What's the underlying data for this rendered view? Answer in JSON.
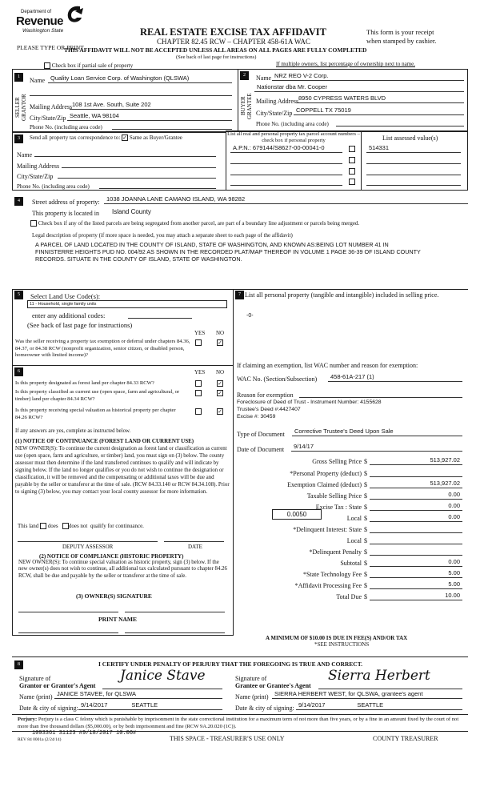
{
  "header": {
    "logo_line1": "Department of",
    "logo_line2": "Revenue",
    "logo_line3": "Washington State",
    "logo_icon": "dor-swirl-logo",
    "title": "REAL ESTATE EXCISE TAX AFFIDAVIT",
    "chapter": "CHAPTER 82.45 RCW – CHAPTER 458-61A WAC",
    "receipt1": "This form is your receipt",
    "receipt2": "when stamped by cashier.",
    "type_print": "PLEASE TYPE OR PRINT",
    "warning": "THIS AFFIDAVIT WILL NOT BE ACCEPTED UNLESS ALL AREAS ON ALL PAGES ARE FULLY COMPLETED",
    "see_back": "(See back of last page for instructions)",
    "partial_sale": "Check box if partial sale of property",
    "partial_sale_checked": false,
    "multiple_owners": "If multiple owners, list percentage of ownership next to name."
  },
  "seller": {
    "num": "1",
    "side_label": "SELLER GRANTOR",
    "name_label": "Name",
    "name": "Quality Loan Service Corp. of Washington  (QLSWA)",
    "name2": "",
    "address_label": "Mailing Address",
    "address": "108 1st Ave. South, Suite 202",
    "city_label": "City/State/Zip",
    "city": "Seattle, WA 98104",
    "phone_label": "Phone No. (including area code)",
    "phone": ""
  },
  "buyer": {
    "num": "2",
    "side_label": "BUYER GRANTEE",
    "name_label": "Name",
    "name": "NRZ REO V-2 Corp.",
    "name2": "Nationstar dba Mr. Cooper",
    "address_label": "Mailing Address",
    "address": "8950 CYPRESS WATERS BLVD",
    "city_label": "City/State/Zip",
    "city": "COPPELL TX 75019",
    "phone_label": "Phone No. (including area code)",
    "phone": ""
  },
  "correspondence": {
    "num": "3",
    "label": "Send all property tax correspondence to:",
    "same_label": "Same as Buyer/Grantee",
    "same_checked": true,
    "name_label": "Name",
    "address_label": "Mailing Address",
    "city_label": "City/State/Zip",
    "phone_label": "Phone No. (including area code)"
  },
  "parcels": {
    "header": "List all real and personal property tax parcel account numbers – check box if personal property",
    "value_header": "List assessed value(s)",
    "rows": [
      {
        "parcel": "A.P.N.:  679144/S8627-00-00041-0",
        "personal": false,
        "value": "514331"
      },
      {
        "parcel": "",
        "personal": false,
        "value": ""
      },
      {
        "parcel": "",
        "personal": false,
        "value": ""
      },
      {
        "parcel": "",
        "personal": false,
        "value": ""
      }
    ]
  },
  "property": {
    "num": "4",
    "street_label": "Street address of property:",
    "street": "1038 JOANNA LANE CAMANO ISLAND, WA 98282",
    "located_label": "This property is located in",
    "county": "Island County",
    "segregated_label": "Check box if any of the listed parcels are being segregated from another parcel, are part of a boundary line adjustment or parcels being merged.",
    "segregated_checked": false,
    "legal_label": "Legal description of property (if more space is needed, you may attach a separate sheet to each page of the affidavit)",
    "legal": "A PARCEL OF LAND LOCATED IN THE COUNTY OF ISLAND, STATE OF WASHINGTON, AND KNOWN AS:BEING LOT NUMBER 41 IN FINNISTERRE HEIGHTS PUD NO. 004/92 AS SHOWN IN THE RECORDED PLAT/MAP THEREOF IN VOLUME 1 PAGE 36-39 OF ISLAND COUNTY RECORDS. SITUATE IN THE COUNTY OF ISLAND, STATE OF WASHINGTON."
  },
  "land_use": {
    "num": "5",
    "label": "Select Land Use Code(s):",
    "code": "11 - Household, single family units",
    "additional_label": "enter any additional codes:",
    "see_back": "(See back of last page for instructions)",
    "yes": "YES",
    "no": "NO",
    "exemption_q": "Was the seller receiving a property tax exemption or deferral under chapters 84.36, 84.37, or 84.38 RCW (nonprofit organization, senior citizen, or disabled person, homeowner with limited income)?",
    "exemption_yes": false,
    "exemption_no": true
  },
  "section6": {
    "num": "6",
    "yes": "YES",
    "no": "NO",
    "questions": [
      {
        "q": "Is this property designated as forest land per chapter 84.33 RCW?",
        "yes": false,
        "no": true
      },
      {
        "q": "Is this property classified as current use (open space, farm and agricultural, or timber) land per chapter 84.34 RCW?",
        "yes": false,
        "no": true
      },
      {
        "q": "Is this property receiving special valuation as historical property per chapter 84.26 RCW?",
        "yes": false,
        "no": true
      }
    ],
    "if_yes": "If any answers are yes, complete as instructed below.",
    "notice1_title": "(1) NOTICE OF CONTINUANCE  (FOREST LAND OR CURRENT USE)",
    "notice1_text": "NEW OWNER(S): To continue the current designation as forest land or classification as current use (open space, farm and agriculture, or timber) land, you must sign on (3) below. The county assessor must then determine if the land transferred continues to qualify and will indicate by signing below. If the land no longer qualifies or you do not wish to continue the designation or classification, it will be removed and the compensating or additional taxes will be due and payable by the seller or transferor at the time of sale. (RCW 84.33.140 or RCW 84.34.108). Prior to signing (3) below, you may contact your local county assessor for more information.",
    "this_land": "This land",
    "does": "does",
    "does_not": "does not",
    "qualify": "qualify for continuance.",
    "deputy": "DEPUTY ASSESSOR",
    "date": "DATE",
    "notice2_title": "(2) NOTICE OF COMPLIANCE (HISTORIC PROPERTY)",
    "notice2_text": "NEW OWNER(S): To continue special valuation as historic property, sign (3) below. If the new owner(s) does not wish to continue, all additional tax calculated pursuant to chapter 84.26 RCW, shall be due and payable by the seller or transferor at the time of sale.",
    "owner_sig": "(3)  OWNER(S) SIGNATURE",
    "print_name": "PRINT NAME"
  },
  "section7": {
    "num": "7",
    "label": "List all  personal property (tangible and intangible) included in selling price.",
    "value": "-0-",
    "exemption_label": "If claiming an exemption, list WAC number and reason for exemption:",
    "wac_label": "WAC No. (Section/Subsection)",
    "wac": "458-61A-217 (1)",
    "reason_label": "Reason for exemption",
    "reason_lines": [
      "Foreclosure of Deed of Trust - Instrument Number: 4155628",
      "Trustee's Deed #:4427407",
      "Excise #: 30459"
    ],
    "doc_type_label": "Type of Document",
    "doc_type": "Corrective Trustee's Deed Upon Sale",
    "doc_date_label": "Date of Document",
    "doc_date": "9/14/17"
  },
  "amounts": {
    "local_rate": "0.0050",
    "rows": [
      {
        "label": "Gross Selling Price",
        "value": "513,927.02"
      },
      {
        "label": "*Personal Property (deduct)",
        "value": ""
      },
      {
        "label": "Exemption Claimed (deduct)",
        "value": "513,927.02"
      },
      {
        "label": "Taxable Selling Price",
        "value": "0.00"
      },
      {
        "label": "Excise Tax : State",
        "value": "0.00"
      },
      {
        "label": "Local",
        "value": "0.00"
      },
      {
        "label": "*Delinquent Interest: State",
        "value": ""
      },
      {
        "label": "Local",
        "value": ""
      },
      {
        "label": "*Delinquent Penalty",
        "value": ""
      },
      {
        "label": "Subtotal",
        "value": "0.00"
      },
      {
        "label": "*State Technology Fee",
        "value": "5.00"
      },
      {
        "label": "*Affidavit Processing Fee",
        "value": "5.00"
      },
      {
        "label": "Total Due",
        "value": "10.00"
      }
    ],
    "currency": "$",
    "minimum": "A MINIMUM OF $10.00 IS DUE IN FEE(S) AND/OR TAX",
    "see_instr": "*SEE INSTRUCTIONS"
  },
  "certify": {
    "num": "8",
    "text": "I CERTIFY UNDER PENALTY OF PERJURY THAT THE FOREGOING IS TRUE AND CORRECT.",
    "grantor_sig_label1": "Signature of",
    "grantor_sig_label2": "Grantor or Grantor's Agent",
    "grantor_signature": "Janice Stave",
    "grantor_name_label": "Name (print)",
    "grantor_name": "JANICE STAVEE, for QLSWA",
    "grantor_date_label": "Date & city of signing:",
    "grantor_date": "9/14/2017",
    "grantor_city": "SEATTLE",
    "grantee_sig_label1": "Signature of",
    "grantee_sig_label2": "Grantee or Grantee's Agent",
    "grantee_signature": "Sierra Herbert",
    "grantee_name_label": "Name (print)",
    "grantee_name": "SIERRA HERBERT WEST,  for QLSWA, grantee's agent",
    "grantee_date_label": "Date & city of signing:",
    "grantee_date": "9/14/2017",
    "grantee_city": "SEATTLE"
  },
  "footer": {
    "perjury_label": "Perjury:",
    "perjury": "Perjury is a class C felony which is punishable by imprisonment in the state correctional institution for a maximum term of not more than five years, or by a fine in an amount fixed by the court of not more than five thousand dollars ($5,000.00), or by both imprisonment and fine (RCW 9A.20.020 (1C)).",
    "stamp": "1093361  31123  #9/18/2017  10.00#",
    "rev": "REV 84 0001a (2/24/14)",
    "treasurer_space": "THIS SPACE - TREASURER'S USE ONLY",
    "county_treasurer": "COUNTY TREASURER"
  }
}
